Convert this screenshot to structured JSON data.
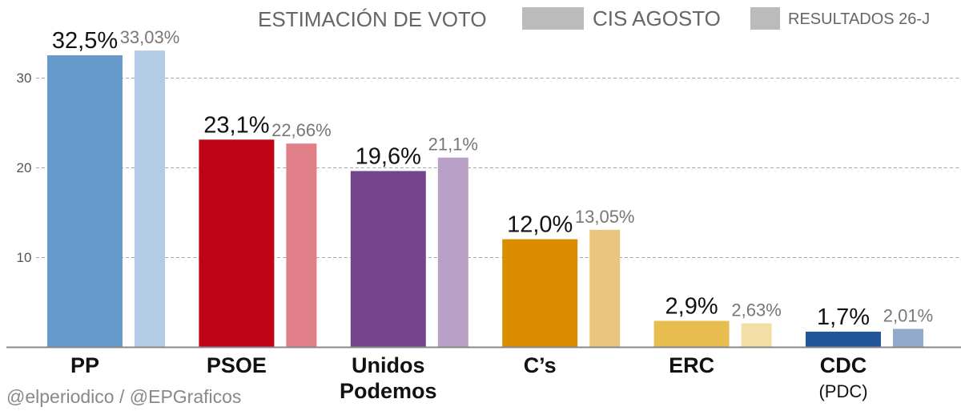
{
  "chart_data": {
    "type": "bar",
    "title": "ESTIMACIÓN DE VOTO",
    "categories": [
      "PP",
      "PSOE",
      "Unidos Podemos",
      "C's",
      "ERC",
      "CDC"
    ],
    "category_lines": [
      [
        "PP"
      ],
      [
        "PSOE"
      ],
      [
        "Unidos",
        "Podemos"
      ],
      [
        "C’s"
      ],
      [
        "ERC"
      ],
      [
        "CDC"
      ]
    ],
    "category_sublabels": [
      "",
      "",
      "",
      "",
      "",
      "(PDC)"
    ],
    "series": [
      {
        "name": "CIS AGOSTO",
        "values": [
          32.5,
          23.1,
          19.6,
          12.0,
          2.9,
          1.7
        ],
        "labels": [
          "32,5%",
          "23,1%",
          "19,6%",
          "12,0%",
          "2,9%",
          "1,7%"
        ],
        "colors": [
          "#6699cc",
          "#c00418",
          "#74458c",
          "#db8d00",
          "#e8bd4f",
          "#23559a"
        ]
      },
      {
        "name": "RESULTADOS 26-J",
        "values": [
          33.03,
          22.66,
          21.1,
          13.05,
          2.63,
          2.01
        ],
        "labels": [
          "33,03%",
          "22,66%",
          "21,1%",
          "13,05%",
          "2,63%",
          "2,01%"
        ],
        "colors": [
          "#b3cce6",
          "#e07f88",
          "#b9a0c7",
          "#ebc57f",
          "#f4dea7",
          "#91aacb"
        ]
      }
    ],
    "legend": {
      "placement": "top-right",
      "swatch_color": "#bbbbbb"
    },
    "yticks": [
      10,
      20,
      30
    ],
    "ylim": [
      0,
      35
    ],
    "grid": true,
    "xlabel": "",
    "ylabel": ""
  },
  "credit": "@elperiodico / @EPGraficos"
}
